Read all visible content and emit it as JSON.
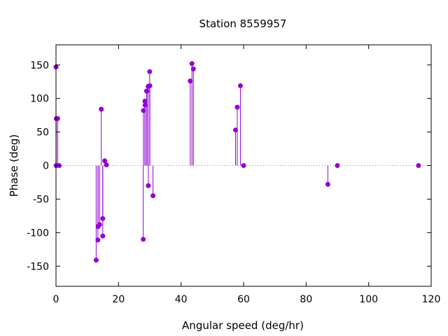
{
  "chart_data": {
    "type": "scatter",
    "title": "Station 8559957",
    "xlabel": "Angular speed (deg/hr)",
    "ylabel": "Phase (deg)",
    "xlim": [
      0,
      120
    ],
    "ylim": [
      -180,
      180
    ],
    "xticks": [
      0,
      20,
      40,
      60,
      80,
      100,
      120
    ],
    "yticks": [
      -150,
      -100,
      -50,
      0,
      50,
      100,
      150
    ],
    "grid": false,
    "legend": "none",
    "zero_line": true,
    "color": "#9400d3",
    "series": [
      {
        "x": [
          0.0,
          0.04,
          0.08,
          0.54,
          1.02,
          12.85,
          13.4,
          13.47,
          13.94,
          14.49,
          14.96,
          14.96,
          15.59,
          16.14,
          27.9,
          27.97,
          28.44,
          28.51,
          28.98,
          29.07,
          29.46,
          29.53,
          29.96,
          30.03,
          31.02,
          42.93,
          43.48,
          43.94,
          57.42,
          57.97,
          58.98,
          60.0,
          86.95,
          90.0,
          115.94
        ],
        "y": [
          147,
          0,
          70,
          70,
          0,
          -141,
          -111,
          -91,
          -88,
          84,
          -105,
          -79,
          7,
          1,
          -110,
          82,
          96,
          90,
          111,
          111,
          118,
          -30,
          140,
          119,
          -45,
          126,
          152,
          144,
          53,
          87,
          119,
          0,
          -28,
          0,
          0
        ]
      }
    ]
  }
}
